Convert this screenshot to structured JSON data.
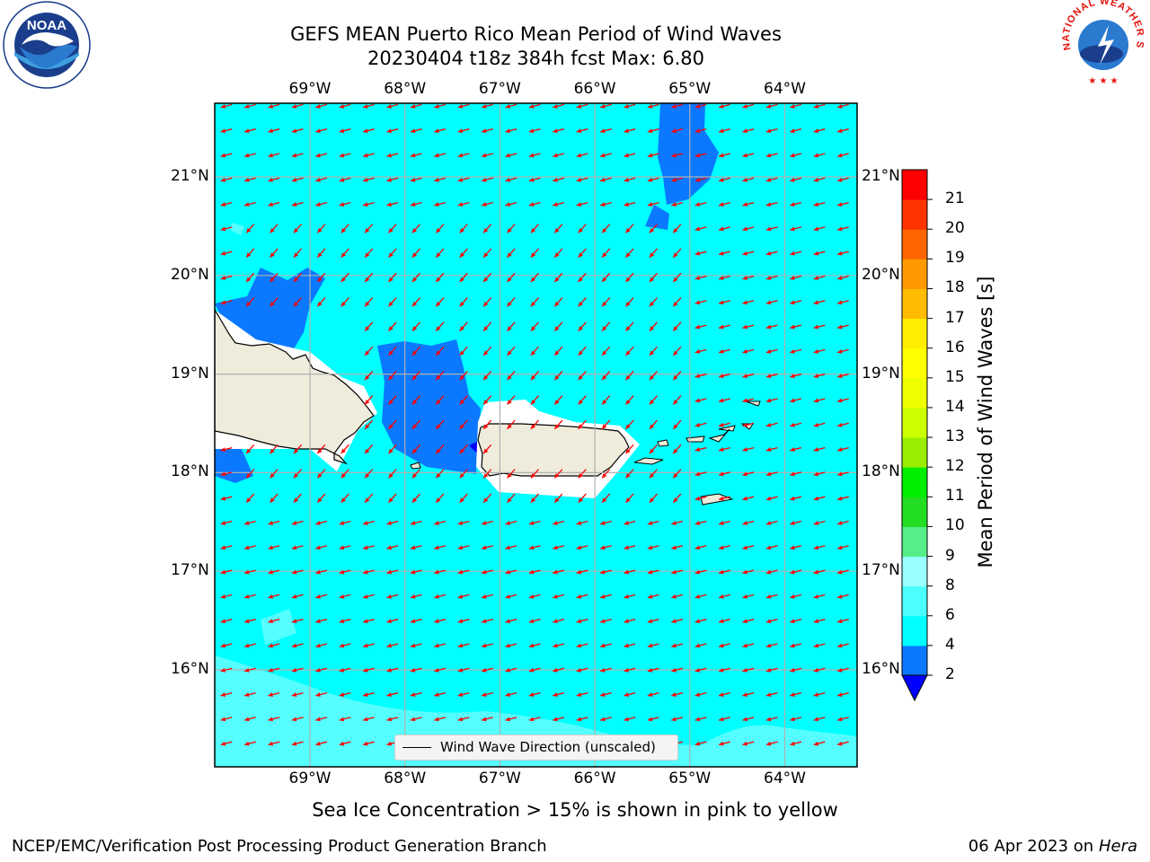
{
  "title": {
    "line1": "GEFS MEAN Puerto Rico Mean Period of Wind Waves",
    "line2": "20230404 t18z 384h fcst   Max: 6.80"
  },
  "map": {
    "lon_labels": [
      "69°W",
      "68°W",
      "67°W",
      "66°W",
      "65°W",
      "64°W"
    ],
    "lat_labels": [
      "21°N",
      "20°N",
      "19°N",
      "18°N",
      "17°N",
      "16°N"
    ],
    "legend_label": "Wind Wave Direction (unscaled)",
    "arrow_color": "#ff0000",
    "wave_direction": "toward west-southwest"
  },
  "colorbar": {
    "title": "Mean Period of Wind Waves [s]",
    "ticks": [
      "2",
      "4",
      "6",
      "8",
      "9",
      "10",
      "11",
      "12",
      "13",
      "14",
      "15",
      "16",
      "17",
      "18",
      "19",
      "20",
      "21"
    ],
    "colors": [
      "#0a78ff",
      "#00ffff",
      "#4cffff",
      "#99ffff",
      "#55ee88",
      "#22dd22",
      "#00ee00",
      "#99ee00",
      "#ccff00",
      "#eeff00",
      "#ffff00",
      "#ffee00",
      "#ffbb00",
      "#ff9900",
      "#ff6600",
      "#ff3300",
      "#ff0000"
    ],
    "under_color": "#0000ff"
  },
  "footnote": "Sea Ice Concentration > 15% is shown in pink to yellow",
  "footer": {
    "left": "NCEP/EMC/Verification Post Processing Product Generation Branch",
    "right_prefix": "06 Apr 2023 on ",
    "right_host": "Hera"
  },
  "logos": {
    "noaa_text": "NOAA",
    "nws_text": "NATIONAL WEATHER SERVICE"
  }
}
